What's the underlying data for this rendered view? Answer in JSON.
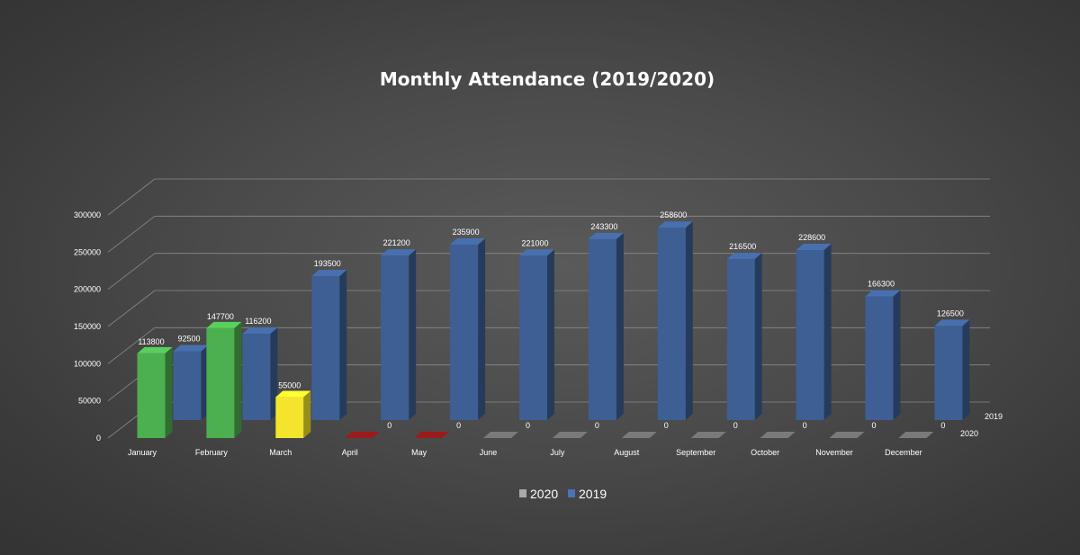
{
  "chart_data": {
    "type": "bar",
    "title": "Monthly Attendance (2019/2020)",
    "categories": [
      "January",
      "February",
      "March",
      "April",
      "May",
      "June",
      "July",
      "August",
      "September",
      "October",
      "November",
      "December"
    ],
    "series": [
      {
        "name": "2020",
        "values": [
          113800,
          147700,
          55000,
          0,
          0,
          0,
          0,
          0,
          0,
          0,
          0,
          0
        ],
        "labels": [
          "113800",
          "147700",
          "55000",
          "0",
          "0",
          "0",
          "0",
          "0",
          "0",
          "0",
          "0",
          "0"
        ],
        "colors": [
          "#4caf50",
          "#4caf50",
          "#f2e52c",
          "#9b1b1b",
          "#9b1b1b",
          "#7a7a7a",
          "#7a7a7a",
          "#7a7a7a",
          "#7a7a7a",
          "#7a7a7a",
          "#7a7a7a",
          "#7a7a7a"
        ]
      },
      {
        "name": "2019",
        "values": [
          92500,
          116200,
          193500,
          221200,
          235900,
          221000,
          243300,
          258600,
          216500,
          228600,
          166300,
          126500
        ],
        "labels": [
          "92500",
          "116200",
          "193500",
          "221200",
          "235900",
          "221000",
          "243300",
          "258600",
          "216500",
          "228600",
          "166300",
          "126500"
        ],
        "color": "#3d5f94"
      }
    ],
    "y_ticks": [
      "0",
      "50000",
      "100000",
      "150000",
      "200000",
      "250000",
      "300000"
    ],
    "ylim": [
      0,
      300000
    ],
    "legend": {
      "position": "bottom",
      "entries": [
        "2020",
        "2019"
      ],
      "colors": [
        "#a9a9a9",
        "#4a73b5"
      ]
    },
    "depth_axis_labels": [
      "2019",
      "2020"
    ],
    "grid": true
  }
}
